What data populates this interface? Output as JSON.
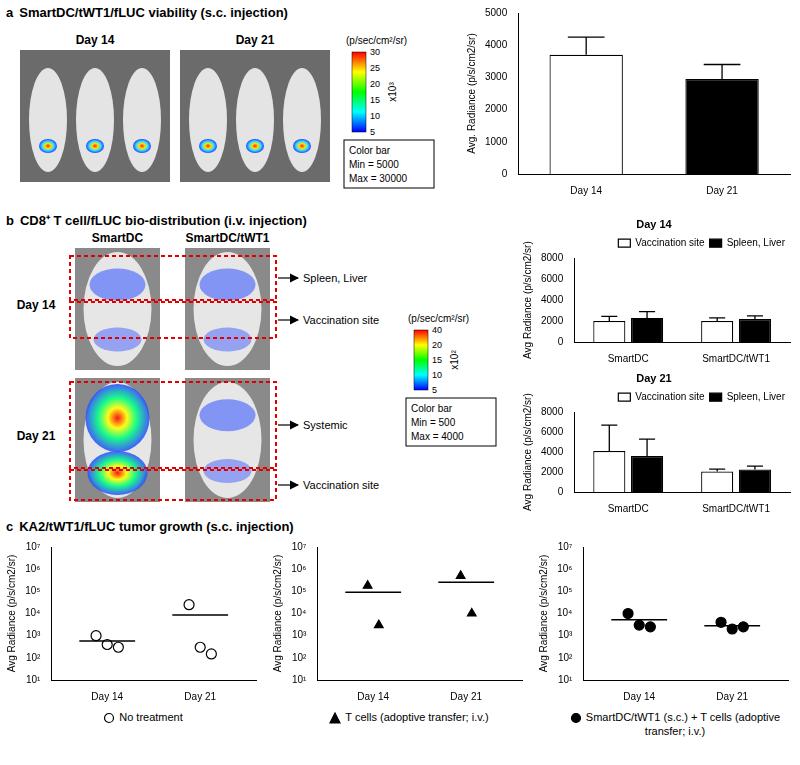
{
  "panels": [
    {
      "label": "a",
      "title": "SmartDC/tWT1/fLUC viability (s.c. injection)",
      "image": {
        "columns": [
          "Day 14",
          "Day 21"
        ],
        "colorbar": {
          "title": "(p/sec/cm²/sr)",
          "ticks": [
            30,
            25,
            20,
            15,
            10,
            5
          ],
          "multiplier": "x10³",
          "box": [
            "Color bar",
            "Min = 5000",
            "Max = 30000"
          ]
        }
      }
    },
    {
      "label": "b",
      "title": "CD8⁺ T cell/fLUC bio-distribution (i.v. injection)",
      "image": {
        "columns": [
          "SmartDC",
          "SmartDC/tWT1"
        ],
        "rows": [
          "Day 14",
          "Day 21"
        ],
        "regions": [
          [
            "Spleen, Liver",
            "Vaccination site"
          ],
          [
            "Systemic",
            "Vaccination site"
          ]
        ],
        "colorbar": {
          "title": "(p/sec/cm²/sr)",
          "ticks": [
            40,
            20,
            15,
            10,
            5
          ],
          "multiplier": "x10²",
          "box": [
            "Color bar",
            "Min = 500",
            "Max = 4000"
          ]
        }
      }
    },
    {
      "label": "c",
      "title": "KA2/tWT1/fLUC tumor growth (s.c. injection)"
    }
  ],
  "chart_data": [
    {
      "type": "bar",
      "categories": [
        "Day 14",
        "Day 21"
      ],
      "values": [
        3700,
        2950
      ],
      "errors": [
        550,
        450
      ],
      "colors": [
        "#ffffff",
        "#000000"
      ],
      "ylabel": "Avg. Radiance (p/s/cm2/sr)",
      "ylim": [
        0,
        5000
      ],
      "yticks": [
        0,
        1000,
        2000,
        3000,
        4000,
        5000
      ],
      "grid": false
    },
    {
      "type": "bar",
      "title": "Day 14",
      "categories": [
        "SmartDC",
        "SmartDC/tWT1"
      ],
      "series": [
        {
          "name": "Vaccination site",
          "color": "#ffffff",
          "values": [
            2000,
            2000
          ],
          "errors": [
            450,
            300
          ]
        },
        {
          "name": "Spleen, Liver",
          "color": "#000000",
          "values": [
            2300,
            2200
          ],
          "errors": [
            600,
            300
          ]
        }
      ],
      "ylabel": "Avg Radiance (p/s/cm2/sr)",
      "ylim": [
        0,
        8000
      ],
      "yticks": [
        0,
        2000,
        4000,
        6000,
        8000
      ],
      "legend": "upper right",
      "grid": false
    },
    {
      "type": "bar",
      "title": "Day 21",
      "categories": [
        "SmartDC",
        "SmartDC/tWT1"
      ],
      "series": [
        {
          "name": "Vaccination site",
          "color": "#ffffff",
          "values": [
            4100,
            2050
          ],
          "errors": [
            2600,
            250
          ]
        },
        {
          "name": "Spleen, Liver",
          "color": "#000000",
          "values": [
            3600,
            2250
          ],
          "errors": [
            1700,
            350
          ]
        }
      ],
      "ylabel": "Avg Radiance (p/s/cm2/sr)",
      "ylim": [
        0,
        8000
      ],
      "yticks": [
        0,
        2000,
        4000,
        6000,
        8000
      ],
      "legend": "upper right",
      "grid": false
    },
    {
      "type": "scatter",
      "categories": [
        "Day 14",
        "Day 21"
      ],
      "series": [
        {
          "name": "No treatment",
          "color": "#ffffff",
          "marker": "circle",
          "values": [
            [
              1000,
              400,
              300
            ],
            [
              25000,
              300,
              150
            ]
          ],
          "means": [
            570,
            8480
          ]
        }
      ],
      "ylabel": "Avg Radiance (p/s/cm2/sr)",
      "log": "y",
      "ylim": [
        10,
        10000000
      ],
      "yticks": [
        {
          "value": 10,
          "label": "10¹"
        },
        {
          "value": 100,
          "label": "10²"
        },
        {
          "value": 1000,
          "label": "10³"
        },
        {
          "value": 10000,
          "label": "10⁴"
        },
        {
          "value": 100000,
          "label": "10⁵"
        },
        {
          "value": 1000000,
          "label": "10⁶"
        },
        {
          "value": 10000000,
          "label": "10⁷"
        }
      ],
      "grid": false
    },
    {
      "type": "scatter",
      "categories": [
        "Day 14",
        "Day 21"
      ],
      "series": [
        {
          "name": "T cells (adoptive transfer; i.v.)",
          "color": "#000000",
          "marker": "triangle",
          "values": [
            [
              180000,
              3000
            ],
            [
              500000,
              10000
            ]
          ],
          "means": [
            91500,
            255000
          ]
        }
      ],
      "ylabel": "Avg Radiance (p/s/cm2/sr)",
      "log": "y",
      "ylim": [
        10,
        10000000
      ],
      "yticks": [
        {
          "value": 10,
          "label": "10¹"
        },
        {
          "value": 100,
          "label": "10²"
        },
        {
          "value": 1000,
          "label": "10³"
        },
        {
          "value": 10000,
          "label": "10⁴"
        },
        {
          "value": 100000,
          "label": "10⁵"
        },
        {
          "value": 1000000,
          "label": "10⁶"
        },
        {
          "value": 10000000,
          "label": "10⁷"
        }
      ],
      "grid": false
    },
    {
      "type": "scatter",
      "categories": [
        "Day 14",
        "Day 21"
      ],
      "series": [
        {
          "name": "SmartDC/tWT1 (s.c.) + T cells (adoptive transfer; i.v.)",
          "color": "#000000",
          "marker": "circle",
          "values": [
            [
              10000,
              3000,
              2500
            ],
            [
              4000,
              2000,
              2500
            ]
          ],
          "means": [
            5170,
            2830
          ]
        }
      ],
      "ylabel": "Avg Radiance (p/s/cm2/sr)",
      "log": "y",
      "ylim": [
        10,
        10000000
      ],
      "yticks": [
        {
          "value": 10,
          "label": "10¹"
        },
        {
          "value": 100,
          "label": "10²"
        },
        {
          "value": 1000,
          "label": "10³"
        },
        {
          "value": 10000,
          "label": "10⁴"
        },
        {
          "value": 100000,
          "label": "10⁵"
        },
        {
          "value": 1000000,
          "label": "10⁶"
        },
        {
          "value": 10000000,
          "label": "10⁷"
        }
      ],
      "grid": false
    }
  ]
}
